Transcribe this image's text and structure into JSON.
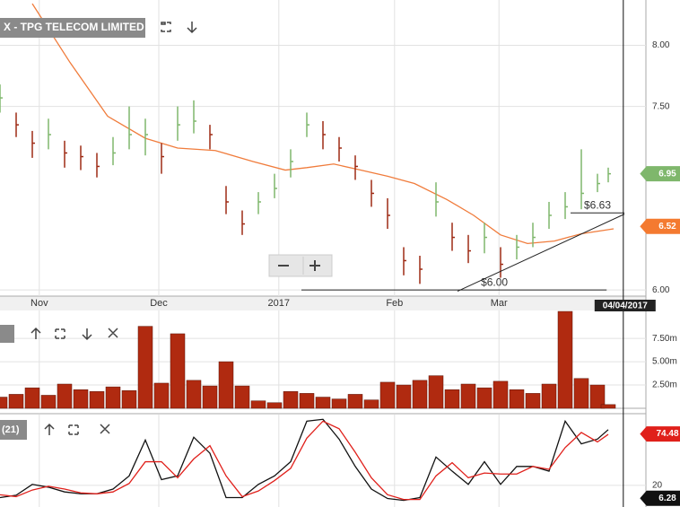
{
  "chart_data": [
    {
      "type": "ohlc",
      "title": "X - TPG TELECOM LIMITED",
      "x": [
        0,
        3,
        6,
        9,
        12,
        15,
        18,
        21,
        24,
        27,
        30,
        33,
        36,
        39,
        42,
        45,
        48,
        51,
        54,
        57,
        60,
        63,
        66,
        69,
        72,
        75,
        78,
        81,
        84,
        87,
        90,
        93,
        96,
        99,
        102,
        105,
        108,
        111,
        113
      ],
      "close": [
        7.57,
        7.35,
        7.2,
        7.27,
        7.12,
        7.09,
        7.01,
        7.12,
        7.27,
        7.27,
        7.09,
        7.35,
        7.38,
        7.27,
        6.72,
        6.54,
        6.72,
        6.83,
        7.05,
        7.35,
        7.27,
        7.16,
        7.01,
        6.79,
        6.61,
        6.24,
        6.17,
        6.72,
        6.43,
        6.32,
        6.43,
        6.21,
        6.35,
        6.43,
        6.61,
        6.68,
        6.79,
        6.87,
        6.95
      ],
      "high": [
        7.68,
        7.45,
        7.3,
        7.4,
        7.22,
        7.18,
        7.12,
        7.25,
        7.5,
        7.4,
        7.2,
        7.5,
        7.55,
        7.35,
        6.85,
        6.65,
        6.8,
        6.95,
        7.15,
        7.45,
        7.38,
        7.25,
        7.1,
        6.9,
        6.75,
        6.35,
        6.28,
        6.88,
        6.55,
        6.45,
        6.55,
        6.35,
        6.45,
        6.55,
        6.72,
        6.8,
        7.15,
        6.95,
        7.0
      ],
      "low": [
        7.45,
        7.25,
        7.08,
        7.15,
        7.0,
        6.98,
        6.92,
        7.02,
        7.15,
        7.1,
        6.95,
        7.22,
        7.28,
        7.15,
        6.62,
        6.45,
        6.62,
        6.75,
        6.92,
        7.25,
        7.15,
        7.05,
        6.9,
        6.68,
        6.5,
        6.12,
        6.05,
        6.6,
        6.32,
        6.22,
        6.3,
        6.1,
        6.25,
        6.35,
        6.5,
        6.58,
        6.66,
        6.8,
        6.88
      ],
      "up_color": "#7fb76c",
      "down_color": "#9e2a14",
      "ma": {
        "x": [
          6,
          13,
          20,
          27,
          33,
          40,
          47,
          53,
          57,
          62,
          67,
          72,
          77,
          83,
          88,
          93,
          98,
          103,
          108,
          114
        ],
        "values": [
          8.34,
          7.86,
          7.42,
          7.24,
          7.16,
          7.14,
          7.05,
          6.98,
          7.0,
          7.03,
          6.98,
          6.93,
          6.87,
          6.74,
          6.61,
          6.45,
          6.38,
          6.4,
          6.46,
          6.5
        ],
        "color": "#f07c3c"
      },
      "xlim": [
        0,
        120
      ],
      "ylim": [
        5.95,
        8.37
      ],
      "xticks": [
        {
          "value": 7.3,
          "label": "Nov"
        },
        {
          "value": 29.5,
          "label": "Dec"
        },
        {
          "value": 51.8,
          "label": "2017"
        },
        {
          "value": 73.3,
          "label": "Feb"
        },
        {
          "value": 92.7,
          "label": "Mar"
        }
      ],
      "yticks": [
        {
          "value": 6,
          "label": "6.00"
        },
        {
          "value": 7.5,
          "label": "7.50"
        },
        {
          "value": 8,
          "label": "8.00"
        }
      ],
      "levels": [
        {
          "label": "$6.00",
          "y": 6.0,
          "x": [
            56,
            112.7
          ]
        },
        {
          "label": "$6.63",
          "y": 6.63,
          "x": [
            106,
            116
          ]
        }
      ],
      "trendline": {
        "x": [
          85,
          116
        ],
        "y": [
          5.99,
          6.62
        ]
      },
      "tags": [
        {
          "value": 6.95,
          "color": "#7fb76c"
        },
        {
          "value": 6.52,
          "color": "#f47a30"
        }
      ],
      "crosshair": {
        "x": 115.8,
        "label": "04/04/2017"
      }
    },
    {
      "type": "bar",
      "x": [
        0,
        3,
        6,
        9,
        12,
        15,
        18,
        21,
        24,
        27,
        30,
        33,
        36,
        39,
        42,
        45,
        48,
        51,
        54,
        57,
        60,
        63,
        66,
        69,
        72,
        75,
        78,
        81,
        84,
        87,
        90,
        93,
        96,
        99,
        102,
        105,
        108,
        111,
        113
      ],
      "values": [
        1.2,
        1.5,
        2.2,
        1.4,
        2.6,
        2.0,
        1.8,
        2.3,
        1.9,
        8.8,
        2.7,
        8.0,
        3.0,
        2.4,
        5.0,
        2.4,
        0.8,
        0.6,
        1.8,
        1.6,
        1.2,
        1.0,
        1.5,
        0.9,
        2.8,
        2.5,
        3.0,
        3.5,
        2.0,
        2.6,
        2.2,
        2.9,
        2.0,
        1.6,
        2.6,
        10.4,
        3.2,
        2.5,
        0.4
      ],
      "color": "#b02a10",
      "xlim": [
        0,
        120
      ],
      "ylim": [
        0,
        10.5
      ],
      "yticks": [
        {
          "value": 2.5,
          "label": "2.50m"
        },
        {
          "value": 5,
          "label": "5.00m"
        },
        {
          "value": 7.5,
          "label": "7.50m"
        }
      ]
    },
    {
      "type": "line",
      "title": "(21)",
      "x": [
        0,
        3,
        6,
        9,
        12,
        15,
        18,
        21,
        24,
        27,
        30,
        33,
        36,
        39,
        42,
        45,
        48,
        51,
        54,
        57,
        60,
        63,
        66,
        69,
        72,
        75,
        78,
        81,
        84,
        87,
        90,
        93,
        96,
        99,
        102,
        105,
        108,
        111,
        113
      ],
      "series": [
        {
          "color": "#111111",
          "values": [
            7,
            9.5,
            21,
            18,
            13,
            11,
            11,
            16,
            30,
            68,
            26,
            30,
            71,
            54,
            7,
            7,
            21,
            30,
            45,
            88,
            90,
            69,
            40,
            16,
            6,
            4,
            7,
            50,
            35,
            21,
            45,
            21,
            40,
            40,
            35,
            88,
            64,
            69,
            79
          ]
        },
        {
          "color": "#e0201b",
          "values": [
            10,
            8,
            15,
            19,
            16,
            12,
            11,
            13,
            22,
            45,
            45,
            28,
            48,
            62,
            30,
            8,
            14,
            25,
            38,
            70,
            88,
            80,
            55,
            28,
            10,
            5,
            5,
            30,
            44,
            28,
            33,
            32,
            32,
            40,
            37,
            60,
            76,
            66,
            74
          ]
        }
      ],
      "xlim": [
        0,
        120
      ],
      "ylim": [
        -3,
        95
      ],
      "yticks": [
        20
      ],
      "tags": [
        {
          "value": 74.48,
          "color": "#e0201b"
        },
        {
          "value": 6.28,
          "color": "#111111"
        }
      ]
    }
  ]
}
